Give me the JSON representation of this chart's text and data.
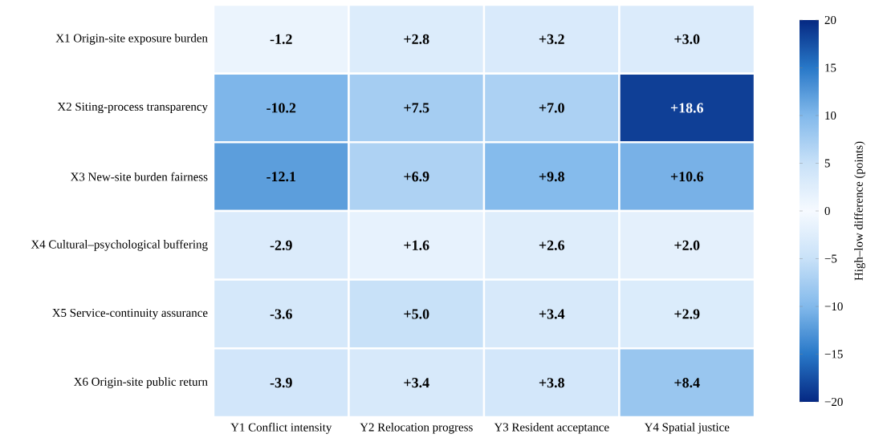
{
  "chart_data": {
    "type": "heatmap",
    "categories": [
      "Y1 Conflict intensity",
      "Y2 Relocation progress",
      "Y3 Resident acceptance",
      "Y4 Spatial justice"
    ],
    "y_categories": [
      "X1 Origin-site exposure burden",
      "X2 Siting-process transparency",
      "X3 New-site burden fairness",
      "X4 Cultural–psychological buffering",
      "X5 Service-continuity assurance",
      "X6 Origin-site public return"
    ],
    "cells": [
      [
        -1.2,
        2.8,
        3.2,
        3.0
      ],
      [
        -10.2,
        7.5,
        7.0,
        18.6
      ],
      [
        -12.1,
        6.9,
        9.8,
        10.6
      ],
      [
        -2.9,
        1.6,
        2.6,
        2.0
      ],
      [
        -3.6,
        5.0,
        3.4,
        2.9
      ],
      [
        -3.9,
        3.4,
        3.8,
        8.4
      ]
    ],
    "cell_labels": [
      [
        "-1.2",
        "+2.8",
        "+3.2",
        "+3.0"
      ],
      [
        "-10.2",
        "+7.5",
        "+7.0",
        "+18.6"
      ],
      [
        "-12.1",
        "+6.9",
        "+9.8",
        "+10.6"
      ],
      [
        "-2.9",
        "+1.6",
        "+2.6",
        "+2.0"
      ],
      [
        "-3.6",
        "+5.0",
        "+3.4",
        "+2.9"
      ],
      [
        "-3.9",
        "+3.4",
        "+3.8",
        "+8.4"
      ]
    ],
    "clim": [
      -20,
      20
    ],
    "cticks": [
      {
        "value": -20,
        "label": "−20"
      },
      {
        "value": -15,
        "label": "−15"
      },
      {
        "value": -10,
        "label": "−10"
      },
      {
        "value": -5,
        "label": "−5"
      },
      0,
      5,
      10,
      15,
      20
    ],
    "clabel": "High–low difference (points)"
  }
}
